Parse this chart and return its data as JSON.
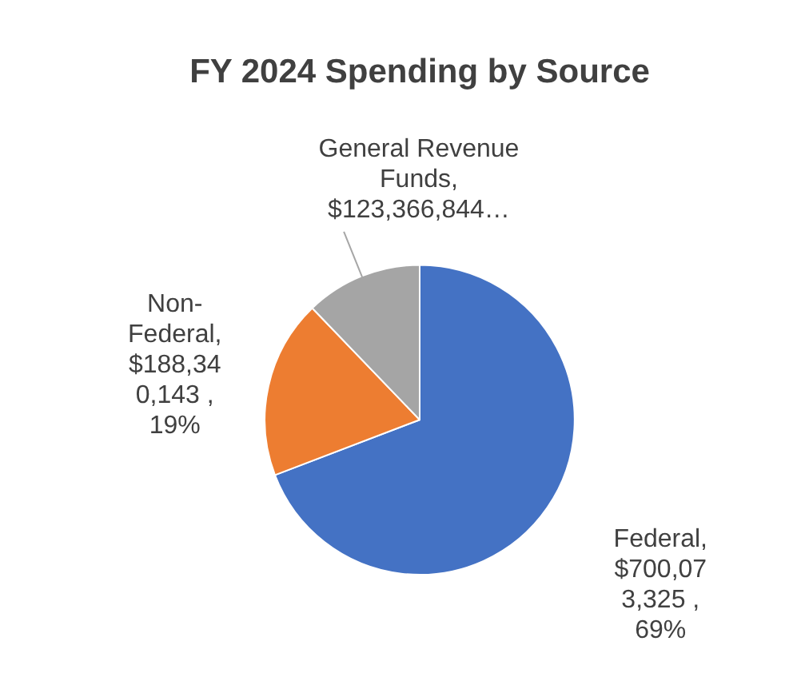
{
  "chart_data": {
    "type": "pie",
    "title": "FY 2024 Spending by Source",
    "categories": [
      "Federal",
      "Non-Federal",
      "General Revenue Funds"
    ],
    "values": [
      700073325,
      188340143,
      123366844
    ],
    "colors": [
      "#4472c4",
      "#ed7d31",
      "#a5a5a5"
    ],
    "value_labels": [
      ", $700,073,325 , 69%",
      ", $188,340,143 , 19%",
      ", $123,366,844…"
    ],
    "legend": false
  }
}
